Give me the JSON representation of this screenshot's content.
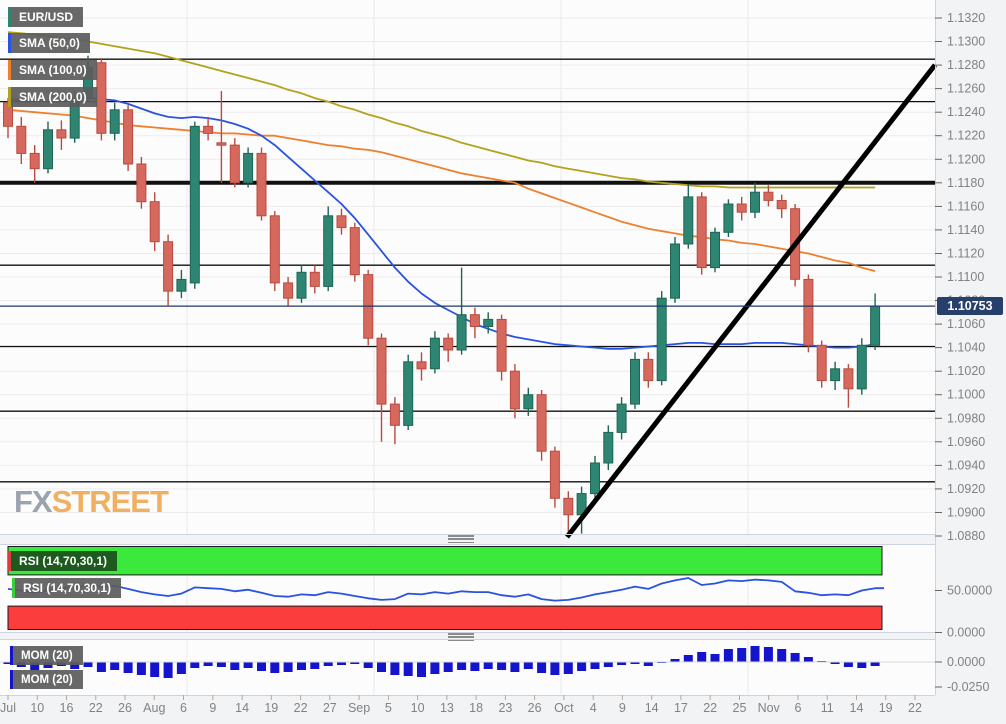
{
  "legend": {
    "symbol": "EUR/USD",
    "symbol_color": "#2e8672",
    "items": [
      {
        "label": "SMA (50,0)",
        "color": "#2a52e0"
      },
      {
        "label": "SMA (100,0)",
        "color": "#ee7f2d"
      },
      {
        "label": "SMA (200,0)",
        "color": "#b3a21b"
      }
    ]
  },
  "watermark": {
    "fx": "FX",
    "street": "STREET"
  },
  "price_badge": {
    "value": "1.10753"
  },
  "indicators": {
    "rsi_label_1": "RSI (14,70,30,1)",
    "rsi_label_2": "RSI (14,70,30,1)",
    "rsi_strip_1": "#e23b3b",
    "rsi_strip_2": "#3dcc3d",
    "mom_label_1": "MOM (20)",
    "mom_label_2": "MOM (20)",
    "mom_strip": "#1414cc"
  },
  "axis": {
    "price_ticks": [
      "1.1320",
      "1.1300",
      "1.1280",
      "1.1260",
      "1.1240",
      "1.1220",
      "1.1200",
      "1.1180",
      "1.1160",
      "1.1140",
      "1.1120",
      "1.1100",
      "1.1080",
      "1.1060",
      "1.1040",
      "1.1020",
      "1.1000",
      "1.0980",
      "1.0960",
      "1.0940",
      "1.0920",
      "1.0900",
      "1.0880"
    ],
    "rsi_ticks": [
      "50.0000",
      "0.0000"
    ],
    "mom_ticks": [
      "0.0000",
      "-0.0250"
    ],
    "x_labels": [
      "Jul",
      "10",
      "16",
      "22",
      "26",
      "Aug",
      "6",
      "9",
      "14",
      "19",
      "22",
      "27",
      "Sep",
      "5",
      "10",
      "13",
      "18",
      "23",
      "26",
      "Oct",
      "4",
      "9",
      "14",
      "17",
      "22",
      "25",
      "Nov",
      "6",
      "11",
      "14",
      "19",
      "22"
    ]
  },
  "chart_data": [
    {
      "type": "candlestick",
      "title": "EUR/USD daily with SMA 50/100/200",
      "ylim": [
        1.088,
        1.132
      ],
      "grid": true,
      "colors": {
        "up": "#2e8672",
        "up_stroke": "#1f6554",
        "down": "#d5695e",
        "down_stroke": "#b94a3f",
        "sma50": "#2a52e0",
        "sma100": "#ee7f2d",
        "sma200": "#b3a21b",
        "level": "#111111",
        "price_line": "#20386b"
      },
      "candles": [
        [
          1.1248,
          1.1252,
          1.1218,
          1.1228
        ],
        [
          1.1228,
          1.1236,
          1.1196,
          1.1205
        ],
        [
          1.1205,
          1.1212,
          1.118,
          1.1192
        ],
        [
          1.1192,
          1.1232,
          1.1188,
          1.1225
        ],
        [
          1.1225,
          1.1233,
          1.1208,
          1.1218
        ],
        [
          1.1218,
          1.1258,
          1.1214,
          1.1252
        ],
        [
          1.1252,
          1.1288,
          1.1248,
          1.1278
        ],
        [
          1.1282,
          1.1286,
          1.1216,
          1.1222
        ],
        [
          1.1222,
          1.1248,
          1.1216,
          1.1242
        ],
        [
          1.1242,
          1.1246,
          1.119,
          1.1196
        ],
        [
          1.1196,
          1.1202,
          1.1158,
          1.1164
        ],
        [
          1.1164,
          1.1172,
          1.1122,
          1.113
        ],
        [
          1.113,
          1.1136,
          1.1076,
          1.1088
        ],
        [
          1.1088,
          1.1106,
          1.1082,
          1.1098
        ],
        [
          1.1095,
          1.1232,
          1.109,
          1.1228
        ],
        [
          1.1228,
          1.1236,
          1.1216,
          1.1222
        ],
        [
          1.1214,
          1.1258,
          1.118,
          1.1212
        ],
        [
          1.1212,
          1.1218,
          1.1176,
          1.118
        ],
        [
          1.118,
          1.121,
          1.1176,
          1.1205
        ],
        [
          1.1205,
          1.121,
          1.1148,
          1.1152
        ],
        [
          1.1152,
          1.1156,
          1.1088,
          1.1095
        ],
        [
          1.1095,
          1.11,
          1.1075,
          1.1082
        ],
        [
          1.1082,
          1.111,
          1.1078,
          1.1104
        ],
        [
          1.1104,
          1.111,
          1.1086,
          1.1092
        ],
        [
          1.1092,
          1.116,
          1.1088,
          1.1152
        ],
        [
          1.1152,
          1.1158,
          1.1136,
          1.1142
        ],
        [
          1.1142,
          1.1146,
          1.1096,
          1.1102
        ],
        [
          1.1102,
          1.1106,
          1.1042,
          1.1048
        ],
        [
          1.1048,
          1.1052,
          1.096,
          1.0992
        ],
        [
          1.0992,
          1.0998,
          1.0958,
          1.0974
        ],
        [
          1.0974,
          1.1034,
          1.097,
          1.1028
        ],
        [
          1.1028,
          1.1036,
          1.1012,
          1.1022
        ],
        [
          1.1022,
          1.1054,
          1.1018,
          1.1048
        ],
        [
          1.1048,
          1.1052,
          1.1028,
          1.1038
        ],
        [
          1.1038,
          1.1108,
          1.1034,
          1.1068
        ],
        [
          1.1068,
          1.1074,
          1.1048,
          1.1058
        ],
        [
          1.1058,
          1.107,
          1.1052,
          1.1064
        ],
        [
          1.1064,
          1.1068,
          1.1012,
          1.102
        ],
        [
          1.102,
          1.1026,
          1.098,
          1.0988
        ],
        [
          1.0988,
          1.1006,
          1.0982,
          1.1
        ],
        [
          1.1,
          1.1004,
          1.0944,
          1.0952
        ],
        [
          1.0952,
          1.0956,
          1.0904,
          1.0912
        ],
        [
          1.0912,
          1.0918,
          1.0879,
          1.0898
        ],
        [
          1.0898,
          1.0922,
          1.0882,
          1.0916
        ],
        [
          1.0916,
          1.0948,
          1.091,
          1.0942
        ],
        [
          1.0942,
          1.0974,
          1.0936,
          1.0968
        ],
        [
          1.0968,
          1.0998,
          1.0962,
          1.0992
        ],
        [
          1.0992,
          1.1036,
          1.0988,
          1.103
        ],
        [
          1.103,
          1.1036,
          1.1006,
          1.1012
        ],
        [
          1.1012,
          1.1088,
          1.1008,
          1.1082
        ],
        [
          1.1082,
          1.1134,
          1.1078,
          1.1128
        ],
        [
          1.1128,
          1.1179,
          1.1124,
          1.1168
        ],
        [
          1.1168,
          1.1172,
          1.1102,
          1.1108
        ],
        [
          1.1108,
          1.1142,
          1.1104,
          1.1138
        ],
        [
          1.1138,
          1.1166,
          1.1134,
          1.1162
        ],
        [
          1.1162,
          1.1168,
          1.1148,
          1.1155
        ],
        [
          1.1155,
          1.118,
          1.115,
          1.1172
        ],
        [
          1.1172,
          1.1178,
          1.116,
          1.1165
        ],
        [
          1.1165,
          1.117,
          1.115,
          1.1158
        ],
        [
          1.1158,
          1.1162,
          1.1092,
          1.1098
        ],
        [
          1.1098,
          1.1102,
          1.1036,
          1.1042
        ],
        [
          1.1042,
          1.1046,
          1.1006,
          1.1012
        ],
        [
          1.1012,
          1.1028,
          1.1004,
          1.1022
        ],
        [
          1.1022,
          1.1026,
          1.0989,
          1.1005
        ],
        [
          1.1005,
          1.1048,
          1.1,
          1.1042
        ],
        [
          1.1042,
          1.1086,
          1.1038,
          1.10753
        ]
      ],
      "sma50": [
        1.1251,
        1.125,
        1.125,
        1.1249,
        1.125,
        1.1251,
        1.1252,
        1.1251,
        1.125,
        1.1247,
        1.1243,
        1.1239,
        1.1236,
        1.1235,
        1.1236,
        1.1235,
        1.1233,
        1.123,
        1.1226,
        1.122,
        1.1212,
        1.1202,
        1.1192,
        1.1182,
        1.1172,
        1.1162,
        1.115,
        1.1136,
        1.1122,
        1.1108,
        1.1096,
        1.1086,
        1.1078,
        1.1072,
        1.1066,
        1.106,
        1.1056,
        1.1052,
        1.1049,
        1.1047,
        1.1045,
        1.1043,
        1.1042,
        1.1041,
        1.104,
        1.1039,
        1.1039,
        1.104,
        1.1041,
        1.1042,
        1.1043,
        1.1044,
        1.1044,
        1.1043,
        1.1043,
        1.1043,
        1.1044,
        1.1044,
        1.1044,
        1.1043,
        1.1042,
        1.1041,
        1.104,
        1.104,
        1.1041,
        1.1043
      ],
      "sma100": [
        1.1242,
        1.1241,
        1.124,
        1.1239,
        1.1238,
        1.1237,
        1.1235,
        1.1233,
        1.1231,
        1.1229,
        1.1228,
        1.1227,
        1.1226,
        1.1225,
        1.1224,
        1.1223,
        1.1222,
        1.1222,
        1.1221,
        1.122,
        1.122,
        1.1218,
        1.1216,
        1.1214,
        1.1212,
        1.1211,
        1.1209,
        1.1208,
        1.1206,
        1.1203,
        1.12,
        1.1197,
        1.1194,
        1.1191,
        1.1188,
        1.1186,
        1.1184,
        1.1182,
        1.118,
        1.1175,
        1.1171,
        1.1167,
        1.1163,
        1.1159,
        1.1155,
        1.1151,
        1.1147,
        1.1144,
        1.1141,
        1.1139,
        1.1137,
        1.1135,
        1.1134,
        1.1132,
        1.1131,
        1.1129,
        1.1128,
        1.1126,
        1.1124,
        1.1122,
        1.112,
        1.1117,
        1.1114,
        1.1112,
        1.1108,
        1.1105
      ],
      "sma200": [
        1.1308,
        1.1307,
        1.1306,
        1.1305,
        1.1303,
        1.1302,
        1.13,
        1.1298,
        1.1296,
        1.1294,
        1.1292,
        1.129,
        1.1287,
        1.1284,
        1.1281,
        1.1278,
        1.1275,
        1.1272,
        1.1269,
        1.1266,
        1.1263,
        1.1259,
        1.1256,
        1.1252,
        1.1249,
        1.1245,
        1.1242,
        1.1238,
        1.1235,
        1.1231,
        1.1228,
        1.1224,
        1.1221,
        1.1218,
        1.1214,
        1.1211,
        1.1208,
        1.1205,
        1.1202,
        1.1199,
        1.1197,
        1.1194,
        1.1192,
        1.119,
        1.1188,
        1.1186,
        1.1184,
        1.1183,
        1.1181,
        1.118,
        1.1179,
        1.1178,
        1.1177,
        1.1177,
        1.1176,
        1.1176,
        1.1176,
        1.1176,
        1.1176,
        1.1176,
        1.1176,
        1.1176,
        1.1176,
        1.1176,
        1.1176,
        1.1176
      ],
      "levels": [
        {
          "price": 1.1285,
          "weight": "thin"
        },
        {
          "price": 1.1249,
          "weight": "thin"
        },
        {
          "price": 1.118,
          "weight": "thick"
        },
        {
          "price": 1.111,
          "weight": "thin"
        },
        {
          "price": 1.1041,
          "weight": "thin"
        },
        {
          "price": 1.0986,
          "weight": "thin"
        },
        {
          "price": 1.0926,
          "weight": "thin"
        }
      ],
      "price_line": 1.10753,
      "trendline": {
        "x1_frac": 0.606,
        "price1": 1.0879,
        "x2_frac": 1.0,
        "price2": 1.128
      }
    },
    {
      "type": "line",
      "title": "RSI (14,70,30,1)",
      "ylim": [
        0,
        100
      ],
      "overbought": 70,
      "oversold": 30,
      "band_green": "#3de83d",
      "band_red": "#fc3d3d",
      "line_color": "#2a52e0",
      "values": [
        52,
        50,
        47,
        50,
        53,
        54,
        57,
        55,
        56,
        52,
        48,
        45,
        43,
        46,
        54,
        53,
        52,
        49,
        51,
        47,
        43,
        42,
        45,
        44,
        48,
        46,
        43,
        40,
        38,
        39,
        46,
        45,
        48,
        46,
        49,
        48,
        48,
        44,
        42,
        45,
        39,
        37,
        38,
        41,
        45,
        48,
        51,
        55,
        52,
        59,
        63,
        66,
        57,
        59,
        63,
        62,
        64,
        63,
        61,
        49,
        47,
        44,
        45,
        44,
        50,
        53
      ]
    },
    {
      "type": "bar",
      "title": "MOM (20)",
      "ylim": [
        -0.025,
        0.02
      ],
      "bar_color": "#1414cc",
      "values": [
        -0.002,
        -0.005,
        -0.008,
        -0.006,
        -0.004,
        -0.007,
        -0.005,
        -0.01,
        -0.008,
        -0.011,
        -0.013,
        -0.015,
        -0.016,
        -0.012,
        -0.006,
        -0.004,
        -0.005,
        -0.008,
        -0.006,
        -0.009,
        -0.011,
        -0.01,
        -0.008,
        -0.007,
        -0.004,
        -0.003,
        -0.002,
        -0.006,
        -0.01,
        -0.013,
        -0.014,
        -0.015,
        -0.012,
        -0.01,
        -0.008,
        -0.009,
        -0.007,
        -0.008,
        -0.01,
        -0.007,
        -0.011,
        -0.013,
        -0.012,
        -0.009,
        -0.007,
        -0.005,
        -0.003,
        -0.002,
        -0.004,
        -0.001,
        0.003,
        0.007,
        0.01,
        0.008,
        0.013,
        0.014,
        0.016,
        0.015,
        0.013,
        0.009,
        0.005,
        0.001,
        -0.002,
        -0.005,
        -0.006,
        -0.004
      ]
    }
  ]
}
